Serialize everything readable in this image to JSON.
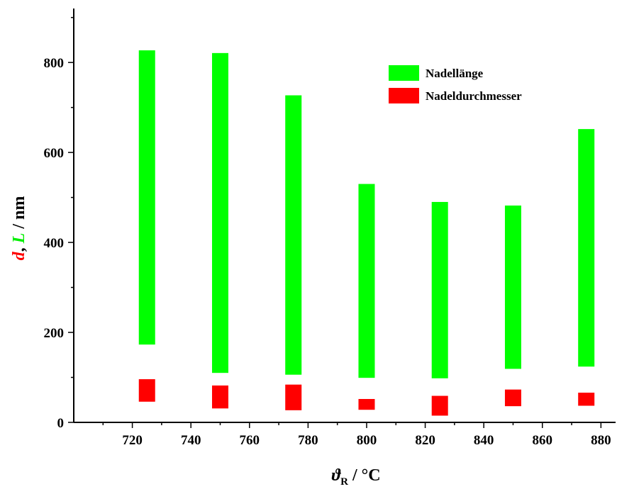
{
  "chart_data": {
    "type": "bar",
    "subtype": "floating-range",
    "xlabel": {
      "symbol": "ϑ",
      "sub": "R",
      "rest": " / °C"
    },
    "ylabel": {
      "d": "d",
      "sep": ", ",
      "L": "L",
      "unit": " / nm"
    },
    "xlim": [
      700,
      885
    ],
    "ylim": [
      0,
      920
    ],
    "xticks": [
      720,
      740,
      760,
      780,
      800,
      820,
      840,
      860,
      880
    ],
    "yticks": [
      0,
      200,
      400,
      600,
      800
    ],
    "x": [
      725,
      750,
      775,
      800,
      825,
      850,
      875
    ],
    "series": [
      {
        "name": "Nadellänge",
        "color": "#00ff00",
        "ranges": [
          [
            173,
            827
          ],
          [
            110,
            821
          ],
          [
            106,
            727
          ],
          [
            99,
            530
          ],
          [
            98,
            490
          ],
          [
            119,
            482
          ],
          [
            124,
            652
          ]
        ]
      },
      {
        "name": "Nadeldurchmesser",
        "color": "#ff0000",
        "ranges": [
          [
            46,
            96
          ],
          [
            31,
            82
          ],
          [
            27,
            84
          ],
          [
            28,
            52
          ],
          [
            15,
            59
          ],
          [
            36,
            73
          ],
          [
            37,
            66
          ]
        ]
      }
    ],
    "legend": {
      "position": "top-right"
    }
  }
}
